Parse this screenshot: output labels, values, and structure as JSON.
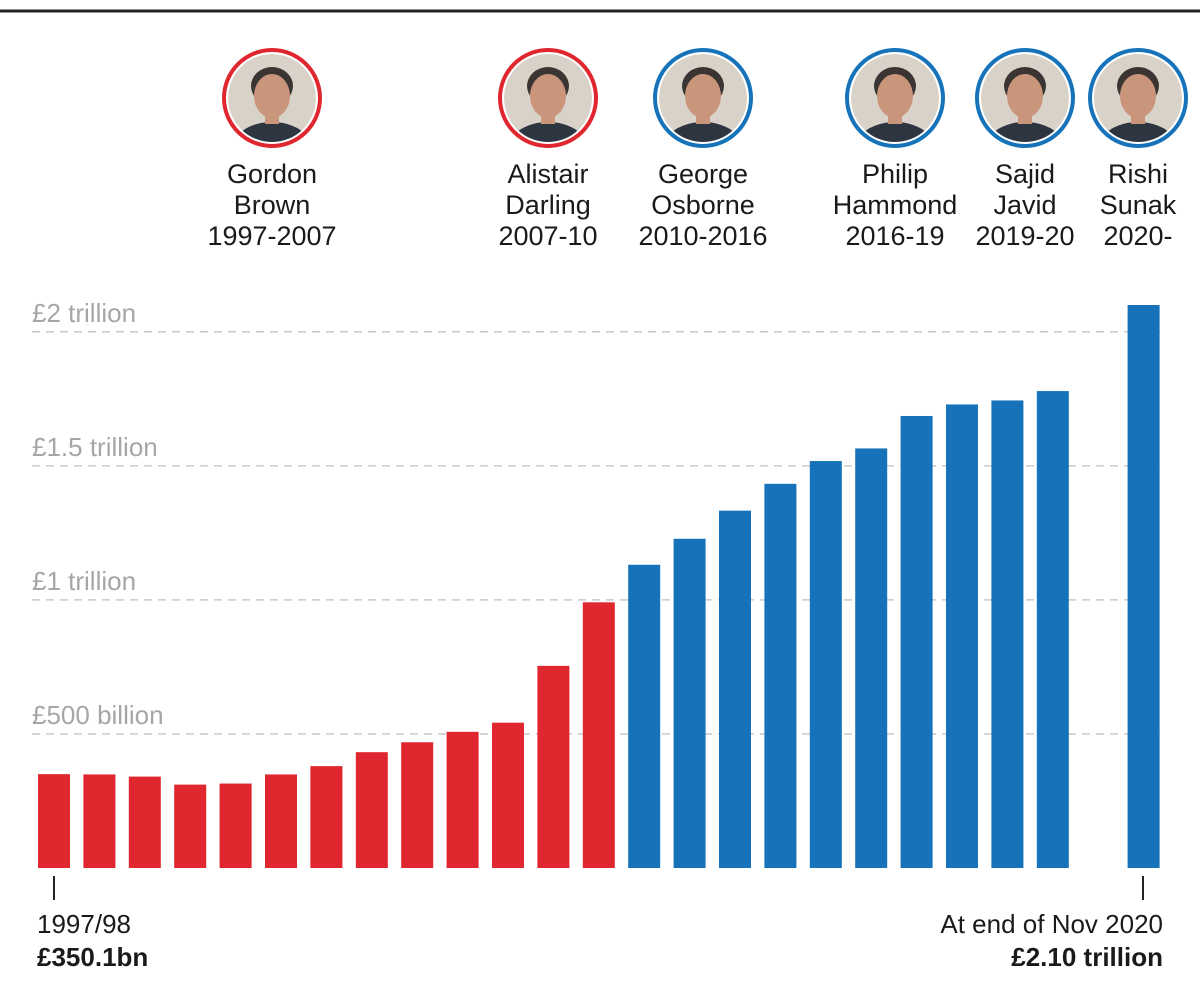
{
  "colors": {
    "labour": "#e0262e",
    "conservative": "#1673b9",
    "grid": "#c9c9c9",
    "axis_text": "#a6a6a6",
    "text": "#1a1a1a"
  },
  "chancellors": [
    {
      "name_line1": "Gordon",
      "name_line2": "Brown",
      "years": "1997-2007",
      "party": "labour",
      "icon": "portrait-gordon-brown"
    },
    {
      "name_line1": "Alistair",
      "name_line2": "Darling",
      "years": "2007-10",
      "party": "labour",
      "icon": "portrait-alistair-darling"
    },
    {
      "name_line1": "George",
      "name_line2": "Osborne",
      "years": "2010-2016",
      "party": "conservative",
      "icon": "portrait-george-osborne"
    },
    {
      "name_line1": "Philip",
      "name_line2": "Hammond",
      "years": "2016-19",
      "party": "conservative",
      "icon": "portrait-philip-hammond"
    },
    {
      "name_line1": "Sajid",
      "name_line2": "Javid",
      "years": "2019-20",
      "party": "conservative",
      "icon": "portrait-sajid-javid"
    },
    {
      "name_line1": "Rishi",
      "name_line2": "Sunak",
      "years": "2020-",
      "party": "conservative",
      "icon": "portrait-rishi-sunak"
    }
  ],
  "annotations": {
    "start_label": "1997/98",
    "start_value": "£350.1bn",
    "end_label": "At end of Nov 2020",
    "end_value": "£2.10 trillion"
  },
  "chart_data": {
    "type": "bar",
    "title": "",
    "xlabel": "",
    "ylabel": "",
    "ylim": [
      0,
      2100
    ],
    "unit": "£ billion",
    "grid": true,
    "yticks": [
      {
        "value": 500,
        "label": "£500 billion"
      },
      {
        "value": 1000,
        "label": "£1 trillion"
      },
      {
        "value": 1500,
        "label": "£1.5 trillion"
      },
      {
        "value": 2000,
        "label": "£2 trillion"
      }
    ],
    "bars": [
      {
        "slot": 0,
        "value": 350,
        "party": "labour"
      },
      {
        "slot": 1,
        "value": 349,
        "party": "labour"
      },
      {
        "slot": 2,
        "value": 341,
        "party": "labour"
      },
      {
        "slot": 3,
        "value": 311,
        "party": "labour"
      },
      {
        "slot": 4,
        "value": 315,
        "party": "labour"
      },
      {
        "slot": 5,
        "value": 349,
        "party": "labour"
      },
      {
        "slot": 6,
        "value": 380,
        "party": "labour"
      },
      {
        "slot": 7,
        "value": 432,
        "party": "labour"
      },
      {
        "slot": 8,
        "value": 469,
        "party": "labour"
      },
      {
        "slot": 9,
        "value": 508,
        "party": "labour"
      },
      {
        "slot": 10,
        "value": 542,
        "party": "labour"
      },
      {
        "slot": 11,
        "value": 754,
        "party": "labour"
      },
      {
        "slot": 12,
        "value": 991,
        "party": "labour"
      },
      {
        "slot": 13,
        "value": 1131,
        "party": "conservative"
      },
      {
        "slot": 14,
        "value": 1228,
        "party": "conservative"
      },
      {
        "slot": 15,
        "value": 1333,
        "party": "conservative"
      },
      {
        "slot": 16,
        "value": 1433,
        "party": "conservative"
      },
      {
        "slot": 17,
        "value": 1518,
        "party": "conservative"
      },
      {
        "slot": 18,
        "value": 1565,
        "party": "conservative"
      },
      {
        "slot": 19,
        "value": 1686,
        "party": "conservative"
      },
      {
        "slot": 20,
        "value": 1729,
        "party": "conservative"
      },
      {
        "slot": 21,
        "value": 1744,
        "party": "conservative"
      },
      {
        "slot": 22,
        "value": 1779,
        "party": "conservative"
      },
      {
        "slot": 24,
        "value": 2100,
        "party": "conservative"
      }
    ]
  }
}
